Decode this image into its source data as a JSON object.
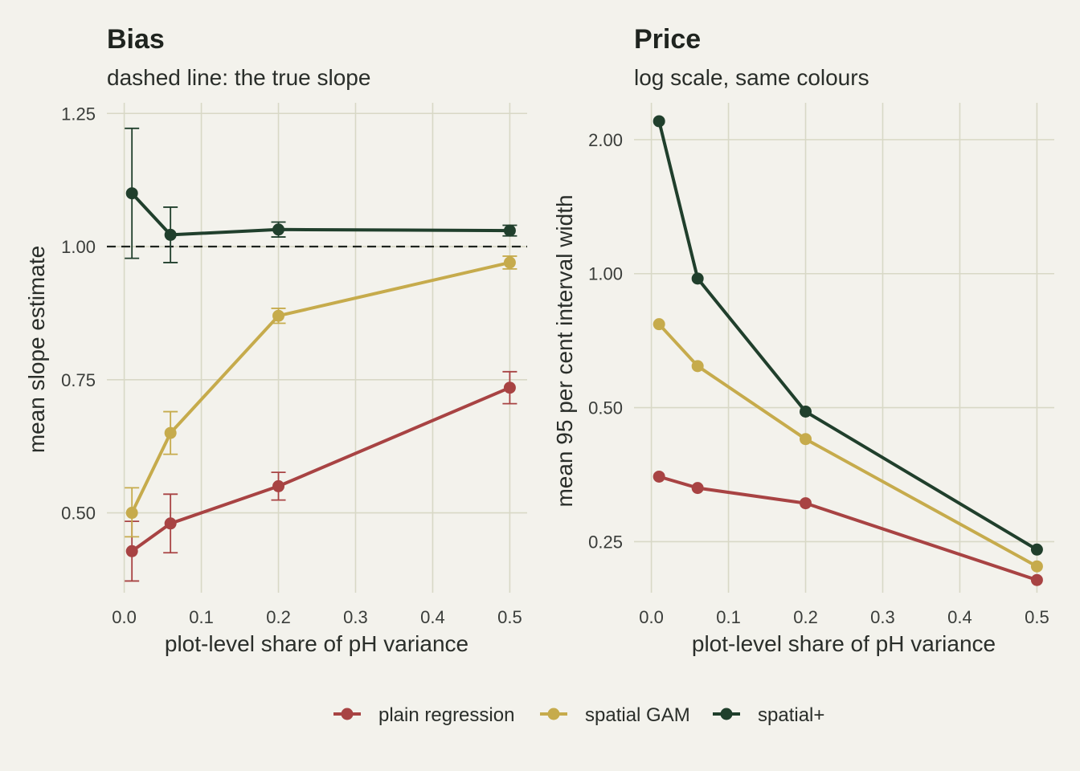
{
  "colors": {
    "background": "#f3f2ec",
    "grid": "#d8d8c6",
    "plain regression": "#a84343",
    "spatial GAM": "#c6ab4c",
    "spatial+": "#203f2c"
  },
  "legend": {
    "position": "bottom",
    "entries": [
      "plain regression",
      "spatial GAM",
      "spatial+"
    ]
  },
  "chart_data": [
    {
      "type": "line",
      "title": "Bias",
      "subtitle": "dashed line: the true slope",
      "xlabel": "plot-level share of pH variance",
      "ylabel": "mean slope estimate",
      "xlim": [
        0,
        0.5
      ],
      "ylim": [
        0.35,
        1.27
      ],
      "x_ticks": [
        0.0,
        0.1,
        0.2,
        0.3,
        0.4,
        0.5
      ],
      "x_tick_labels": [
        "0.0",
        "0.1",
        "0.2",
        "0.3",
        "0.4",
        "0.5"
      ],
      "y_ticks": [
        0.5,
        0.75,
        1.0,
        1.25
      ],
      "y_tick_labels": [
        "0.50",
        "0.75",
        "1.00",
        "1.25"
      ],
      "reference_line": {
        "y": 1.0,
        "style": "dashed"
      },
      "grid": true,
      "x": [
        0.01,
        0.06,
        0.2,
        0.5
      ],
      "series": [
        {
          "name": "plain regression",
          "values": [
            0.428,
            0.48,
            0.55,
            0.735
          ],
          "lower": [
            0.372,
            0.425,
            0.524,
            0.705
          ],
          "upper": [
            0.484,
            0.535,
            0.576,
            0.765
          ]
        },
        {
          "name": "spatial GAM",
          "values": [
            0.5,
            0.65,
            0.87,
            0.97
          ],
          "lower": [
            0.455,
            0.61,
            0.856,
            0.958
          ],
          "upper": [
            0.547,
            0.69,
            0.884,
            0.982
          ]
        },
        {
          "name": "spatial+",
          "values": [
            1.1,
            1.022,
            1.032,
            1.03
          ],
          "lower": [
            0.978,
            0.97,
            1.018,
            1.02
          ],
          "upper": [
            1.222,
            1.074,
            1.046,
            1.04
          ]
        }
      ]
    },
    {
      "type": "line",
      "title": "Price",
      "subtitle": "log scale, same colours",
      "xlabel": "plot-level share of pH variance",
      "ylabel": "mean 95 per cent interval width",
      "xlim": [
        0,
        0.5
      ],
      "ylim": [
        0.192,
        2.42
      ],
      "y_scale": "log",
      "x_ticks": [
        0.0,
        0.1,
        0.2,
        0.3,
        0.4,
        0.5
      ],
      "x_tick_labels": [
        "0.0",
        "0.1",
        "0.2",
        "0.3",
        "0.4",
        "0.5"
      ],
      "y_ticks": [
        0.25,
        0.5,
        1.0,
        2.0
      ],
      "y_tick_labels": [
        "0.25",
        "0.50",
        "1.00",
        "2.00"
      ],
      "grid": true,
      "x": [
        0.01,
        0.06,
        0.2,
        0.5
      ],
      "series": [
        {
          "name": "plain regression",
          "values": [
            0.35,
            0.33,
            0.305,
            0.205
          ]
        },
        {
          "name": "spatial GAM",
          "values": [
            0.77,
            0.62,
            0.425,
            0.22
          ]
        },
        {
          "name": "spatial+",
          "values": [
            2.2,
            0.975,
            0.49,
            0.24
          ]
        }
      ]
    }
  ]
}
